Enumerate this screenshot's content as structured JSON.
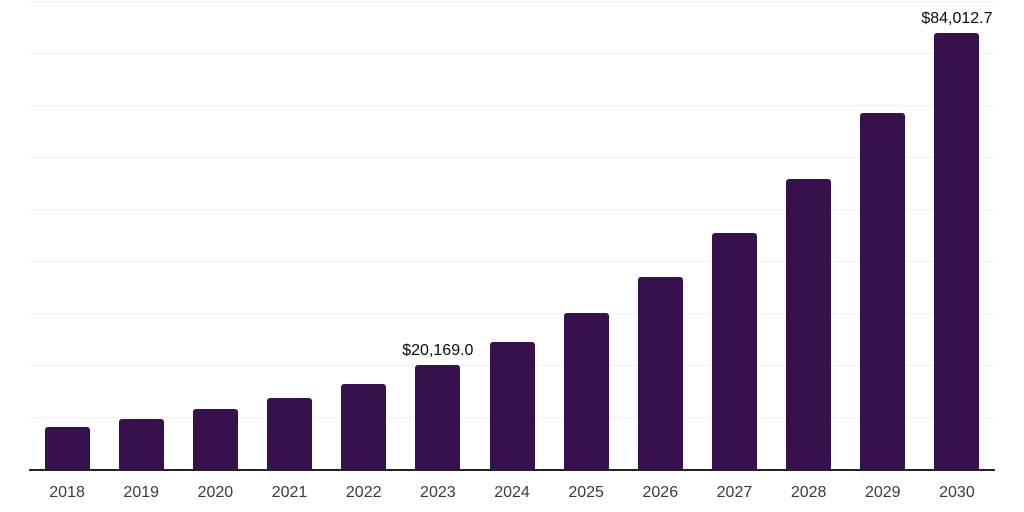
{
  "chart_data": {
    "type": "bar",
    "title": "",
    "xlabel": "",
    "ylabel": "",
    "categories": [
      "2018",
      "2019",
      "2020",
      "2021",
      "2022",
      "2023",
      "2024",
      "2025",
      "2026",
      "2027",
      "2028",
      "2029",
      "2030"
    ],
    "values": [
      8200,
      9800,
      11700,
      13800,
      16500,
      20169.0,
      24700,
      30200,
      37100,
      45600,
      55900,
      68600,
      84012.7
    ],
    "labeled_points": [
      {
        "category": "2023",
        "label": "$20,169.0"
      },
      {
        "category": "2030",
        "label": "$84,012.7"
      }
    ],
    "ylim": [
      0,
      90000
    ],
    "grid_interval": 10000,
    "grid": true,
    "legend": false,
    "colors": {
      "bar": "#37114d",
      "gridline": "#f1f1f1",
      "axis_line": "#222222",
      "tick_label": "#3a3a3a",
      "data_label": "#0a0a0a",
      "background": "#ffffff"
    }
  }
}
